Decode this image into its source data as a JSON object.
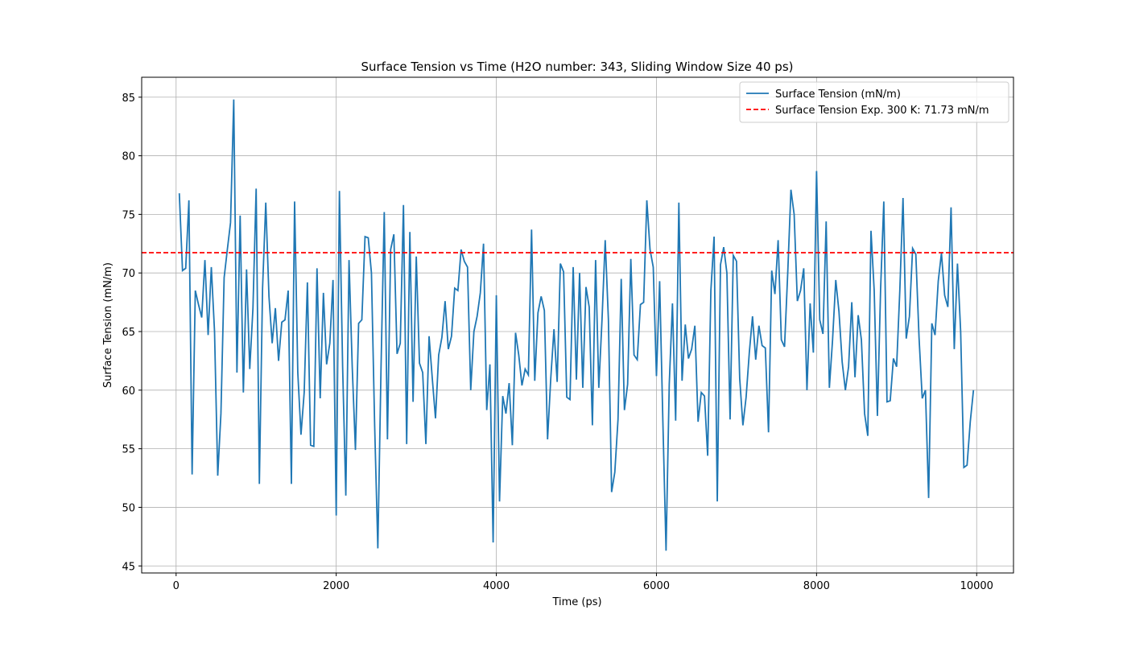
{
  "chart_data": {
    "type": "line",
    "title": "Surface Tension vs Time (H2O number: 343, Sliding Window Size 40 ps)",
    "x_label": "Time (ps)",
    "y_label": "Surface Tension (mN/m)",
    "x": [
      40,
      80,
      120,
      160,
      200,
      240,
      280,
      320,
      360,
      400,
      440,
      480,
      520,
      560,
      600,
      640,
      680,
      720,
      760,
      800,
      840,
      880,
      920,
      960,
      1000,
      1040,
      1080,
      1120,
      1160,
      1200,
      1240,
      1280,
      1320,
      1360,
      1400,
      1440,
      1480,
      1520,
      1560,
      1600,
      1640,
      1680,
      1720,
      1760,
      1800,
      1840,
      1880,
      1920,
      1960,
      2000,
      2040,
      2080,
      2120,
      2160,
      2200,
      2240,
      2280,
      2320,
      2360,
      2400,
      2440,
      2480,
      2520,
      2560,
      2600,
      2640,
      2680,
      2720,
      2760,
      2800,
      2840,
      2880,
      2920,
      2960,
      3000,
      3040,
      3080,
      3120,
      3160,
      3200,
      3240,
      3280,
      3320,
      3360,
      3400,
      3440,
      3480,
      3520,
      3560,
      3600,
      3640,
      3680,
      3720,
      3760,
      3800,
      3840,
      3880,
      3920,
      3960,
      4000,
      4040,
      4080,
      4120,
      4160,
      4200,
      4240,
      4280,
      4320,
      4360,
      4400,
      4440,
      4480,
      4520,
      4560,
      4600,
      4640,
      4680,
      4720,
      4760,
      4800,
      4840,
      4880,
      4920,
      4960,
      5000,
      5040,
      5080,
      5120,
      5160,
      5200,
      5240,
      5280,
      5320,
      5360,
      5400,
      5440,
      5480,
      5520,
      5560,
      5600,
      5640,
      5680,
      5720,
      5760,
      5800,
      5840,
      5880,
      5920,
      5960,
      6000,
      6040,
      6080,
      6120,
      6160,
      6200,
      6240,
      6280,
      6320,
      6360,
      6400,
      6440,
      6480,
      6520,
      6560,
      6600,
      6640,
      6680,
      6720,
      6760,
      6800,
      6840,
      6880,
      6920,
      6960,
      7000,
      7040,
      7080,
      7120,
      7160,
      7200,
      7240,
      7280,
      7320,
      7360,
      7400,
      7440,
      7480,
      7520,
      7560,
      7600,
      7640,
      7680,
      7720,
      7760,
      7800,
      7840,
      7880,
      7920,
      7960,
      8000,
      8040,
      8080,
      8120,
      8160,
      8200,
      8240,
      8280,
      8320,
      8360,
      8400,
      8440,
      8480,
      8520,
      8560,
      8600,
      8640,
      8680,
      8720,
      8760,
      8800,
      8840,
      8880,
      8920,
      8960,
      9000,
      9040,
      9080,
      9120,
      9160,
      9200,
      9240,
      9280,
      9320,
      9360,
      9400,
      9440,
      9480,
      9520,
      9560,
      9600,
      9640,
      9680,
      9720,
      9760,
      9800,
      9840,
      9880,
      9920,
      9960
    ],
    "series": [
      {
        "name": "Surface Tension (mN/m)",
        "color": "#1f77b4",
        "values": [
          76.8,
          70.2,
          70.4,
          76.2,
          52.8,
          68.5,
          67.3,
          66.2,
          71.1,
          64.7,
          70.5,
          65,
          52.7,
          58,
          69.6,
          72,
          74.3,
          84.8,
          61.5,
          74.9,
          59.8,
          70.3,
          61.8,
          67,
          77.2,
          52,
          68.7,
          76,
          68,
          64,
          67,
          62.5,
          65.8,
          66,
          68.5,
          52,
          76.1,
          61.5,
          56.2,
          59.8,
          69.2,
          55.3,
          55.2,
          70.4,
          59.3,
          68.3,
          62.2,
          64,
          69.4,
          49.3,
          77,
          62,
          51,
          71.1,
          62,
          54.9,
          65.7,
          66,
          73.1,
          73,
          70,
          57,
          46.5,
          62,
          75.2,
          55.8,
          72,
          73.3,
          63.1,
          64,
          75.8,
          55.4,
          73.5,
          59,
          71.4,
          62.3,
          61.5,
          55.4,
          64.6,
          61,
          57.6,
          63,
          64.5,
          67.6,
          63.5,
          64.6,
          68.7,
          68.5,
          72,
          71,
          70.5,
          60,
          65,
          66.3,
          68.3,
          72.5,
          58.3,
          62.2,
          47,
          68.1,
          50.5,
          59.5,
          58,
          60.6,
          55.3,
          64.9,
          63,
          60.4,
          61.8,
          61.3,
          73.7,
          60.8,
          66.6,
          68,
          66.8,
          55.8,
          61,
          65.2,
          60.7,
          70.8,
          70.1,
          59.4,
          59.2,
          70.5,
          60.9,
          70,
          60.2,
          68.8,
          67.1,
          57,
          71.1,
          60.2,
          66,
          72.8,
          66,
          51.3,
          53,
          57.5,
          69.5,
          58.3,
          60.5,
          71.2,
          63,
          62.6,
          67.3,
          67.5,
          76.2,
          72,
          70.5,
          61.2,
          69.3,
          57.4,
          46.3,
          60.5,
          67.4,
          57.4,
          76,
          60.8,
          65.6,
          62.7,
          63.5,
          65.5,
          57.3,
          59.8,
          59.5,
          54.4,
          68.5,
          73.1,
          50.5,
          70.7,
          72.2,
          70,
          57.5,
          71.5,
          71,
          61,
          57,
          59.4,
          63.2,
          66.3,
          62.6,
          65.5,
          63.8,
          63.6,
          56.4,
          70.2,
          68.2,
          72.8,
          64.3,
          63.7,
          70,
          77.1,
          75,
          67.6,
          68.5,
          70.4,
          60,
          67.4,
          63.2,
          78.7,
          66,
          64.8,
          74.4,
          60.2,
          64.3,
          69.4,
          66.7,
          62.4,
          60,
          62,
          67.5,
          61.1,
          66.4,
          64.3,
          58,
          56.1,
          73.6,
          68.5,
          57.8,
          68.6,
          76.1,
          59,
          59.1,
          62.7,
          62,
          68.5,
          76.4,
          64.4,
          66.3,
          72.1,
          71.6,
          64.5,
          59.3,
          60,
          50.8,
          65.7,
          64.7,
          69.3,
          71.7,
          68.1,
          67.1,
          75.6,
          63.5,
          70.8,
          65,
          53.4,
          53.6,
          57.3,
          60
        ]
      }
    ],
    "reference_line": {
      "name": "Surface Tension Exp. 300 K: 71.73 mN/m",
      "value": 71.73,
      "color": "#ff0000"
    },
    "xlim": [
      -430,
      10460
    ],
    "ylim": [
      44.4,
      86.7
    ],
    "xticks": [
      0,
      2000,
      4000,
      6000,
      8000,
      10000
    ],
    "yticks": [
      45,
      50,
      55,
      60,
      65,
      70,
      75,
      80,
      85
    ],
    "grid": true,
    "legend": "upper right"
  }
}
